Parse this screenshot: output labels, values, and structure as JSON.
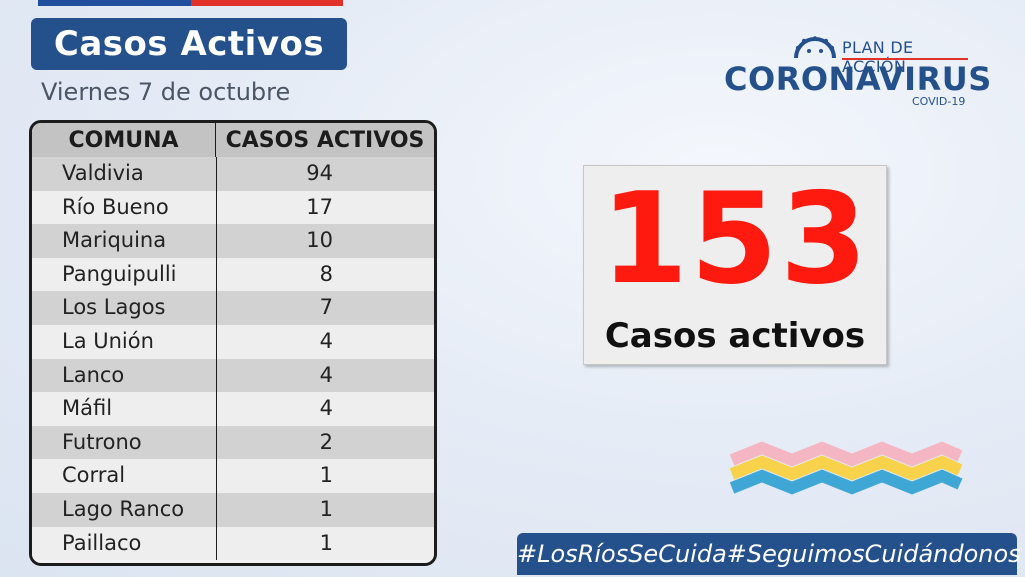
{
  "header": {
    "title": "Casos Activos",
    "date": "Viernes 7 de octubre"
  },
  "logo": {
    "top_text": "PLAN DE ACCIÓN",
    "main_text": "CORONAVIRUS",
    "sub_text": "COVID-19"
  },
  "table": {
    "columns": [
      "COMUNA",
      "CASOS ACTIVOS"
    ],
    "rows": [
      {
        "comuna": "Valdivia",
        "casos": "94"
      },
      {
        "comuna": "Río Bueno",
        "casos": "17"
      },
      {
        "comuna": "Mariquina",
        "casos": "10"
      },
      {
        "comuna": "Panguipulli",
        "casos": "8"
      },
      {
        "comuna": "Los Lagos",
        "casos": "7"
      },
      {
        "comuna": "La Unión",
        "casos": "4"
      },
      {
        "comuna": "Lanco",
        "casos": "4"
      },
      {
        "comuna": "Máfil",
        "casos": "4"
      },
      {
        "comuna": "Futrono",
        "casos": "2"
      },
      {
        "comuna": "Corral",
        "casos": "1"
      },
      {
        "comuna": "Lago Ranco",
        "casos": "1"
      },
      {
        "comuna": "Paillaco",
        "casos": "1"
      }
    ]
  },
  "total": {
    "value": "153",
    "label": "Casos activos"
  },
  "hashtags": [
    "#LosRíosSeCuida",
    "#SeguimosCuidándonos"
  ],
  "colors": {
    "brand_blue": "#24508c",
    "accent_red": "#ff1a0f",
    "flag_red": "#e0312b"
  }
}
